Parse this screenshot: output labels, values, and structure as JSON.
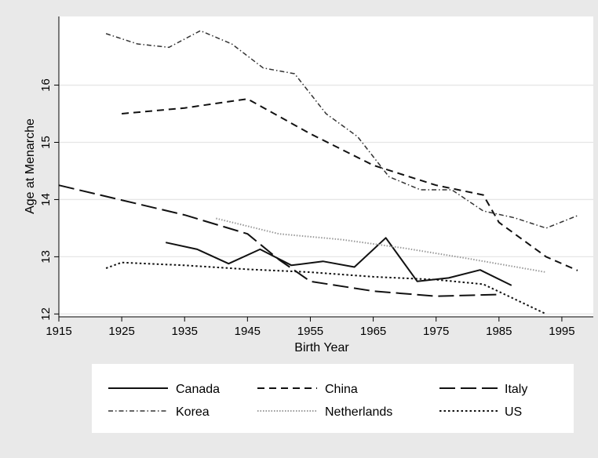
{
  "chart_data": {
    "type": "line",
    "title": "",
    "xlabel": "Birth Year",
    "ylabel": "Age at Menarche",
    "xlim": [
      1915,
      2000
    ],
    "ylim": [
      11.95,
      17.2
    ],
    "xticks": [
      1915,
      1925,
      1935,
      1945,
      1955,
      1965,
      1975,
      1985,
      1995
    ],
    "yticks": [
      12,
      13,
      14,
      15,
      16
    ],
    "grid": "horizontal",
    "legend_position": "bottom",
    "series": [
      {
        "name": "Canada",
        "style": "solid",
        "x": [
          1932,
          1937,
          1942,
          1947,
          1952,
          1957,
          1962,
          1967,
          1972,
          1977,
          1982,
          1987
        ],
        "y": [
          13.25,
          13.13,
          12.88,
          13.13,
          12.85,
          12.92,
          12.82,
          13.33,
          12.57,
          12.63,
          12.77,
          12.5
        ]
      },
      {
        "name": "China",
        "style": "dash",
        "x": [
          1925,
          1935,
          1945,
          1955,
          1965,
          1975,
          1982.5,
          1985,
          1992.5,
          1997.5
        ],
        "y": [
          15.5,
          15.6,
          15.76,
          15.15,
          14.6,
          14.25,
          14.08,
          13.6,
          13.0,
          12.76
        ]
      },
      {
        "name": "Italy",
        "style": "longdash",
        "x": [
          1915,
          1935,
          1945,
          1950,
          1955,
          1965,
          1975,
          1985
        ],
        "y": [
          14.25,
          13.73,
          13.4,
          12.95,
          12.57,
          12.4,
          12.31,
          12.34
        ]
      },
      {
        "name": "Korea",
        "style": "dashdot",
        "x": [
          1922.5,
          1927.5,
          1932.5,
          1937.5,
          1942.5,
          1947.5,
          1952.5,
          1957.5,
          1962.5,
          1967.5,
          1972.5,
          1977.5,
          1982.5,
          1987.5,
          1992.5,
          1997.5
        ],
        "y": [
          16.9,
          16.72,
          16.66,
          16.95,
          16.72,
          16.3,
          16.2,
          15.5,
          15.1,
          14.4,
          14.17,
          14.17,
          13.8,
          13.68,
          13.5,
          13.72
        ]
      },
      {
        "name": "Netherlands",
        "style": "dotted-gray",
        "x": [
          1940,
          1950,
          1960,
          1970,
          1980,
          1992.5
        ],
        "y": [
          13.67,
          13.4,
          13.3,
          13.15,
          12.97,
          12.73
        ]
      },
      {
        "name": "US",
        "style": "dot",
        "x": [
          1922.5,
          1925,
          1935,
          1945,
          1955,
          1965,
          1975,
          1982.5,
          1992.5
        ],
        "y": [
          12.8,
          12.9,
          12.85,
          12.78,
          12.73,
          12.65,
          12.6,
          12.52,
          12.0
        ]
      }
    ]
  }
}
